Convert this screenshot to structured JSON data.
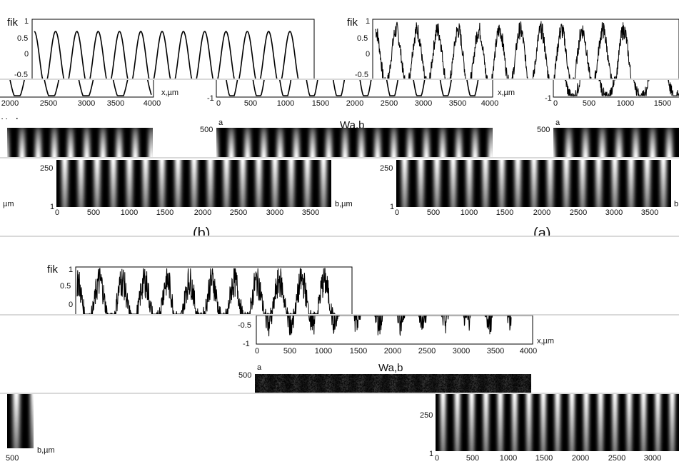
{
  "figure": {
    "labels": {
      "fik": "fik",
      "wab": "Wa,b",
      "x_axis": "x,µm",
      "b_axis": "b,µm",
      "a": "a",
      "b": "b",
      "um": "µm",
      "panel_a": "(a)",
      "panel_b": "(b)"
    },
    "ticks": {
      "y_top": [
        "1",
        "0.5",
        "0",
        "-0.5"
      ],
      "y_bottom": [
        "-0.5",
        "-1"
      ],
      "x_strip_left": [
        "2000",
        "2500",
        "3000",
        "3500",
        "4000"
      ],
      "x_full": [
        "0",
        "500",
        "1000",
        "1500",
        "2000",
        "2500",
        "3000",
        "3500",
        "4000"
      ],
      "x_short": [
        "0",
        "500",
        "1000",
        "1500"
      ],
      "b_full": [
        "0",
        "500",
        "1000",
        "1500",
        "2000",
        "2500",
        "3000",
        "3500"
      ],
      "b_last": [
        "0",
        "500",
        "1000",
        "1500",
        "2000",
        "2500",
        "3000"
      ],
      "b_end": "500",
      "heat_a": [
        "500",
        "250",
        "1"
      ],
      "fik_one": "1",
      "m1": "-1"
    }
  },
  "chart_data": [
    {
      "type": "line",
      "xlabel": "x,µm",
      "ylabel": "fik",
      "xlim": [
        0,
        4000
      ],
      "ylim": [
        -1,
        1
      ],
      "series": [
        {
          "shape": "smooth cosine",
          "amplitude": 0.7,
          "periods_per_4000um": 13
        }
      ]
    },
    {
      "type": "line",
      "xlabel": "x,µm",
      "ylabel": "fik",
      "xlim": [
        0,
        4000
      ],
      "ylim": [
        -1,
        1
      ],
      "series": [
        {
          "shape": "noisy cosine",
          "amplitude": 0.7,
          "periods_per_4000um": 13
        }
      ]
    },
    {
      "type": "line",
      "xlabel": "x,µm",
      "ylabel": "fik",
      "xlim": [
        0,
        4000
      ],
      "ylim": [
        -1,
        1
      ],
      "series": [
        {
          "shape": "very noisy cosine",
          "amplitude": 0.7,
          "periods_per_4000um": 13
        }
      ]
    },
    {
      "type": "heatmap",
      "title": "Wa,b",
      "xlabel": "b,µm",
      "ylabel": "a",
      "xlim": [
        0,
        3800
      ],
      "ylim": [
        1,
        500
      ],
      "stripes": 17
    }
  ]
}
